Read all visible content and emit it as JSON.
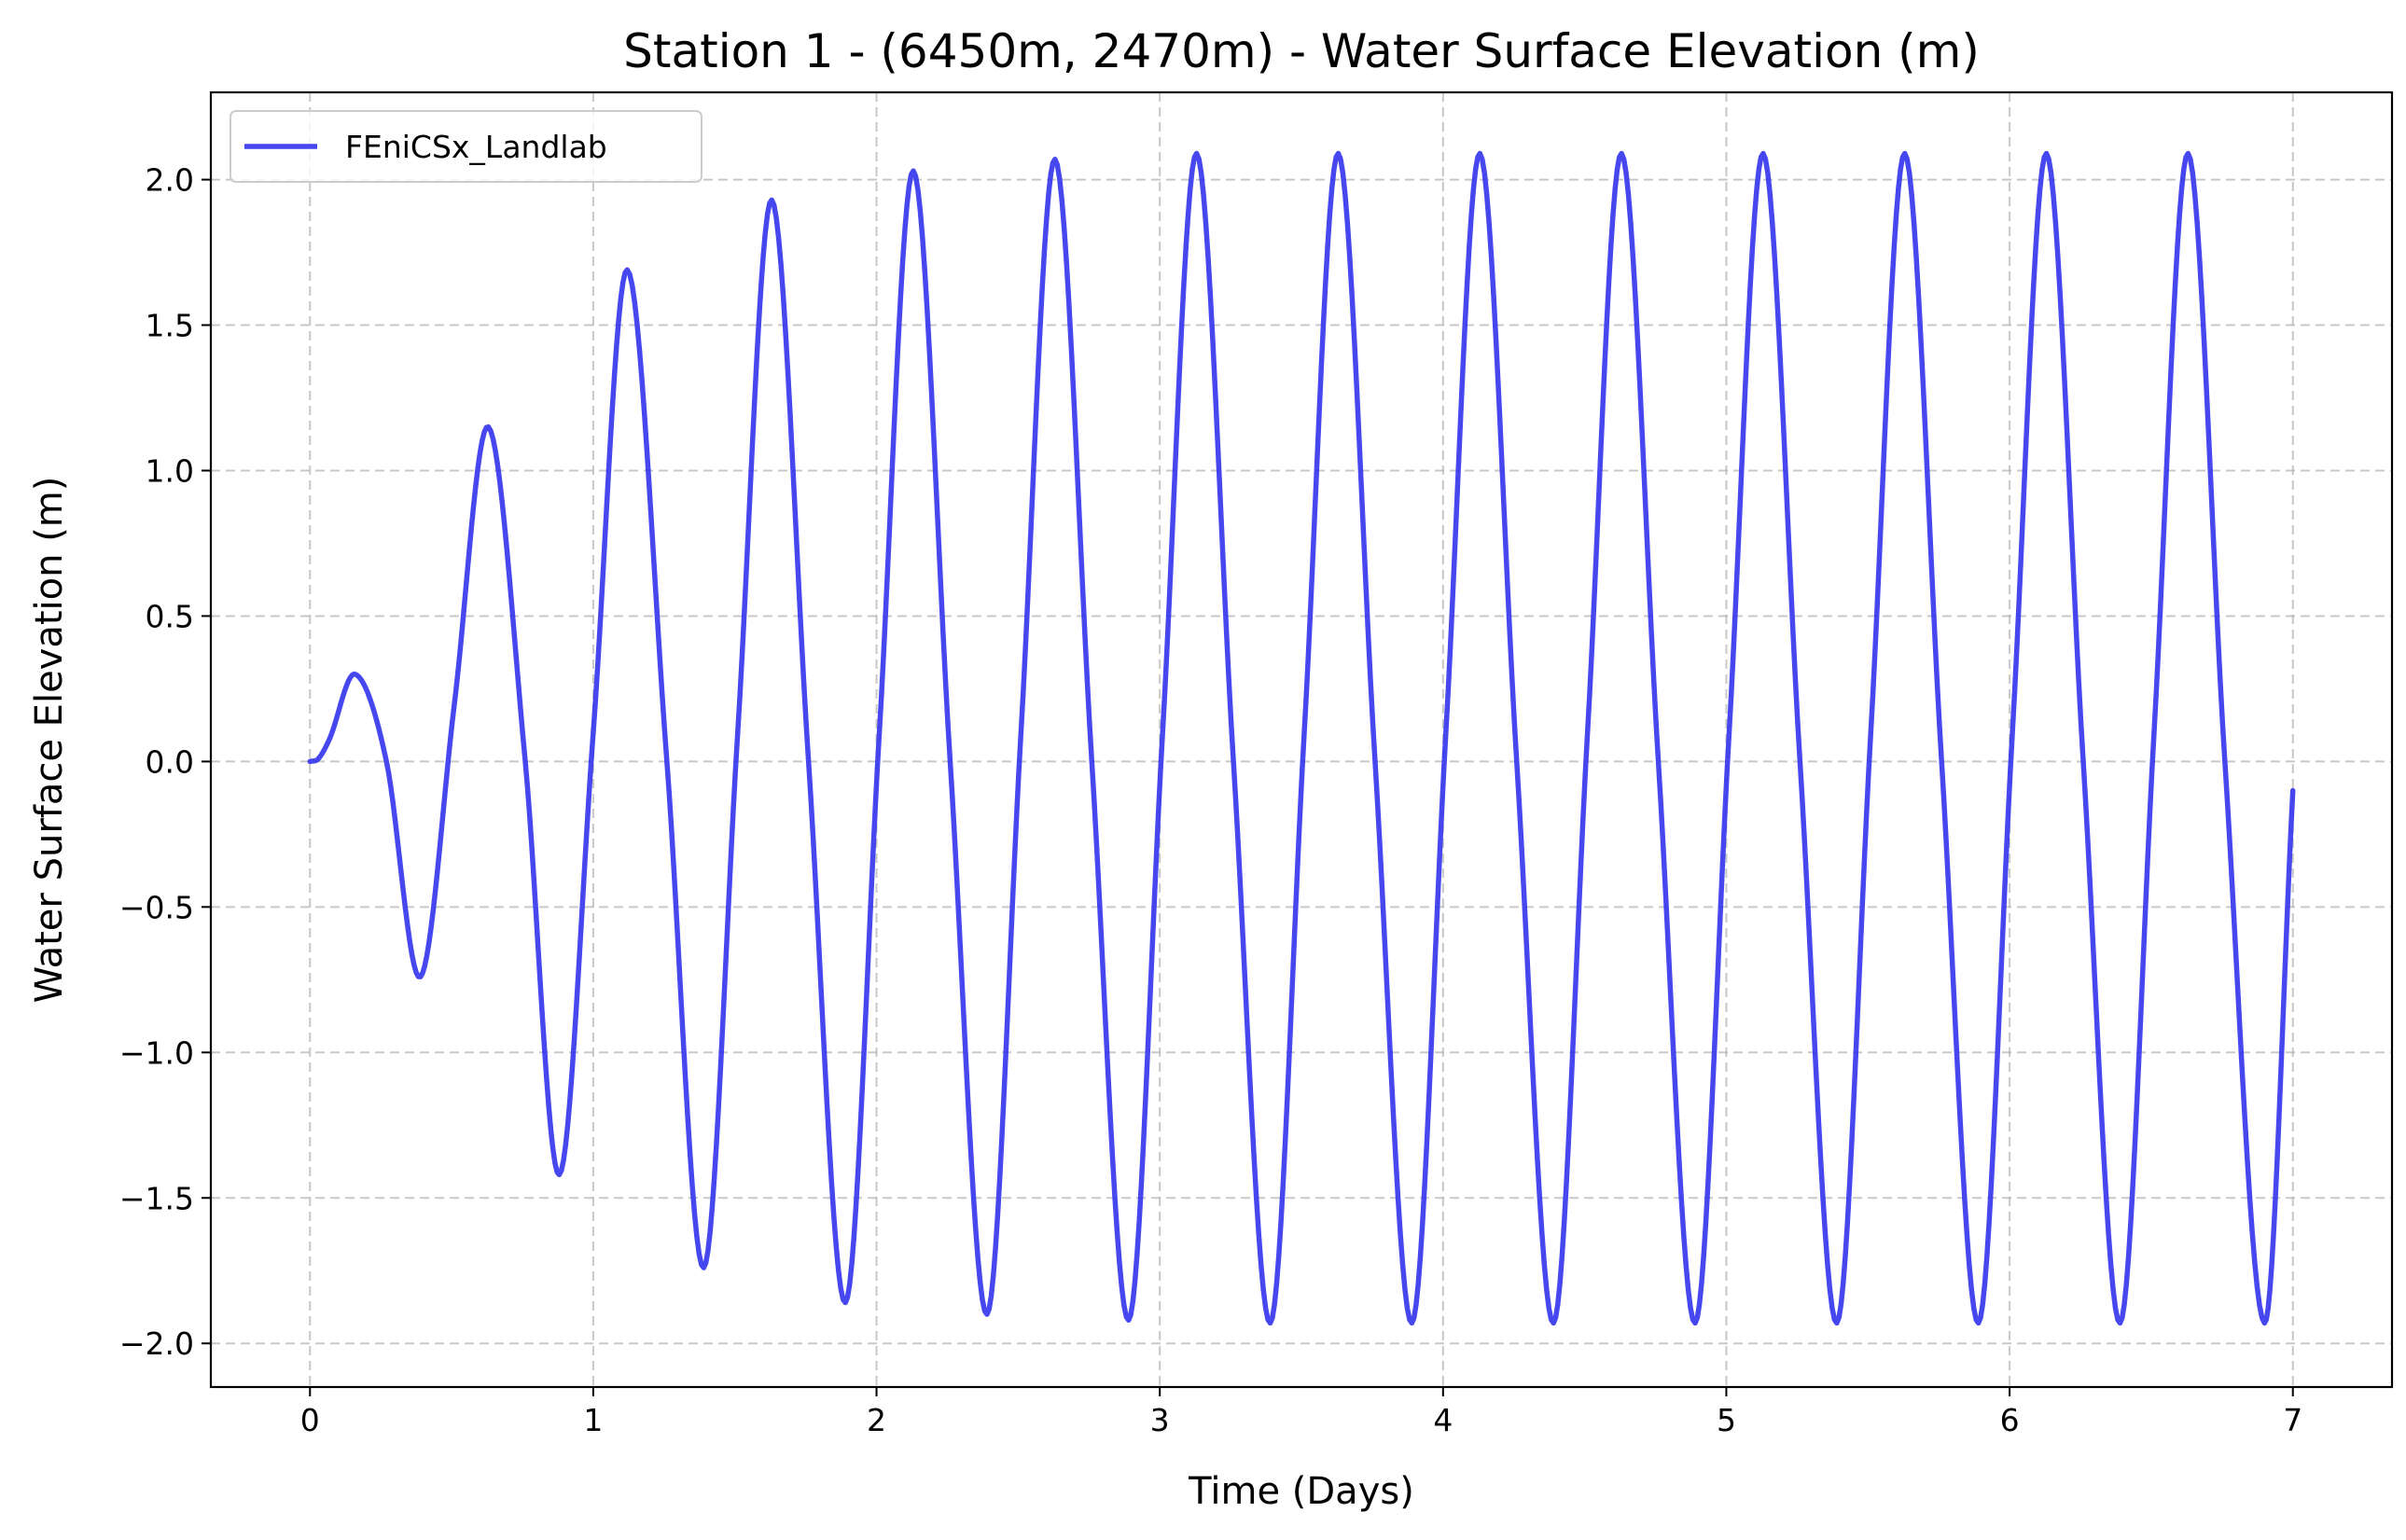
{
  "chart_data": {
    "type": "line",
    "title": "Station 1 - (6450m, 2470m) - Water Surface Elevation (m)",
    "xlabel": "Time (Days)",
    "ylabel": "Water Surface Elevation (m)",
    "xlim": [
      -0.35,
      7.35
    ],
    "ylim": [
      -2.15,
      2.3
    ],
    "xticks": [
      0,
      1,
      2,
      3,
      4,
      5,
      6,
      7
    ],
    "xtick_labels": [
      "0",
      "1",
      "2",
      "3",
      "4",
      "5",
      "6",
      "7"
    ],
    "yticks": [
      -2.0,
      -1.5,
      -1.0,
      -0.5,
      0.0,
      0.5,
      1.0,
      1.5,
      2.0
    ],
    "ytick_labels": [
      "−2.0",
      "−1.5",
      "−1.0",
      "−0.5",
      "0.0",
      "0.5",
      "1.0",
      "1.5",
      "2.0"
    ],
    "grid": true,
    "legend_position": "upper-left",
    "series": [
      {
        "name": "FEniCSx_Landlab",
        "color": "#3333ee",
        "x": [
          0.0,
          0.03,
          0.07,
          0.16,
          0.27,
          0.39,
          0.51,
          0.63,
          0.76,
          0.88,
          1.0,
          1.12,
          1.26,
          1.39,
          1.51,
          1.63,
          1.76,
          1.89,
          2.01,
          2.13,
          2.26,
          2.39,
          2.51,
          2.63,
          2.76,
          2.89,
          3.01,
          3.13,
          3.26,
          3.39,
          3.51,
          3.63,
          3.76,
          3.89,
          4.01,
          4.13,
          4.26,
          4.39,
          4.51,
          4.63,
          4.76,
          4.89,
          5.01,
          5.13,
          5.26,
          5.39,
          5.51,
          5.63,
          5.76,
          5.89,
          6.01,
          6.13,
          6.26,
          6.39,
          6.51,
          6.63,
          6.76,
          6.9,
          7.0
        ],
        "y": [
          0.0,
          0.01,
          0.08,
          0.3,
          0.0,
          -0.74,
          0.2,
          1.15,
          0.0,
          -1.42,
          0.1,
          1.69,
          0.0,
          -1.74,
          0.1,
          1.93,
          0.0,
          -1.86,
          0.1,
          2.03,
          0.0,
          -1.9,
          0.1,
          2.07,
          0.0,
          -1.92,
          0.1,
          2.09,
          0.0,
          -1.93,
          0.1,
          2.09,
          0.0,
          -1.93,
          0.1,
          2.09,
          0.0,
          -1.93,
          0.1,
          2.09,
          0.0,
          -1.93,
          0.1,
          2.09,
          0.0,
          -1.93,
          0.1,
          2.09,
          0.0,
          -1.93,
          0.1,
          2.09,
          0.0,
          -1.93,
          0.1,
          2.09,
          0.0,
          -1.93,
          -0.1
        ]
      }
    ]
  }
}
